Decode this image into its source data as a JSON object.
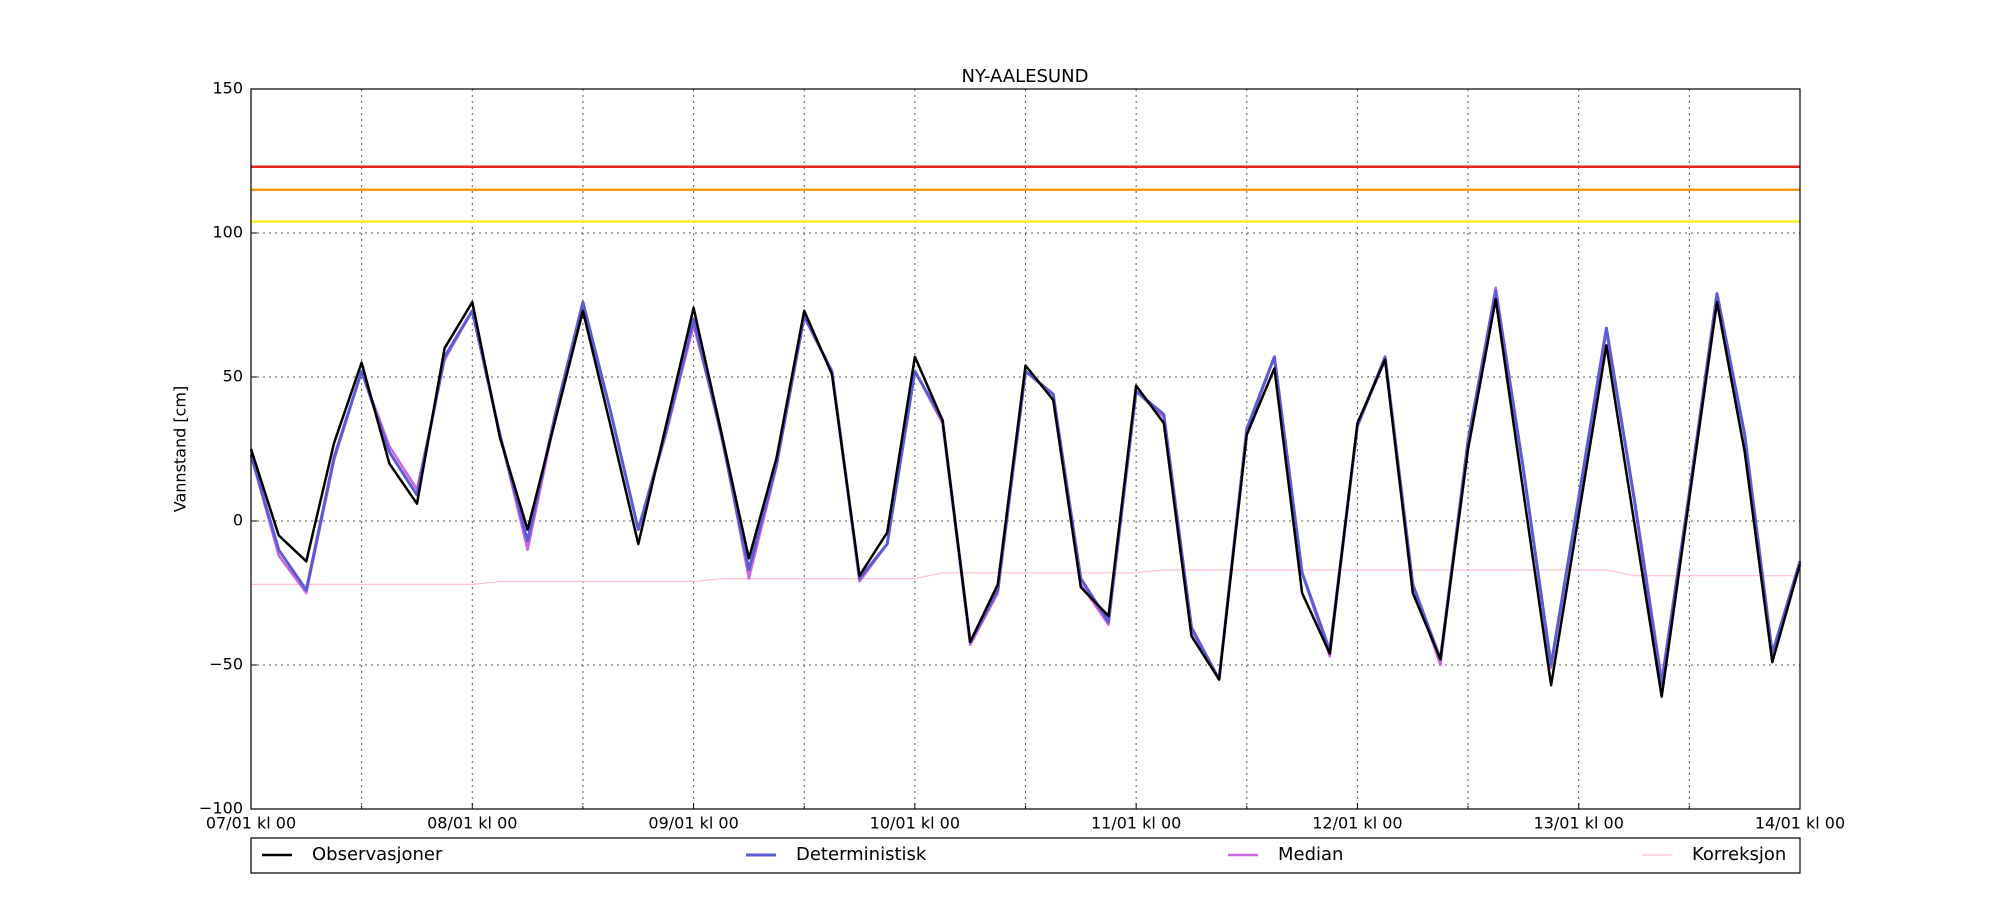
{
  "chart_data": {
    "type": "line",
    "title": "NY-AALESUND",
    "y_label": "Vannstand [cm]",
    "x": [
      0,
      3,
      6,
      9,
      12,
      15,
      18,
      21,
      24,
      27,
      30,
      33,
      36,
      39,
      42,
      45,
      48,
      51,
      54,
      57,
      60,
      63,
      66,
      69,
      72,
      75,
      78,
      81,
      84,
      87,
      90,
      93,
      96,
      99,
      102,
      105,
      108,
      111,
      114,
      117,
      120,
      123,
      126,
      129,
      132,
      135,
      138,
      141,
      144,
      147,
      150,
      153,
      156,
      159,
      162,
      165,
      168
    ],
    "series": [
      {
        "name": "Observasjoner",
        "color": "#000000",
        "width": 2.5,
        "values": [
          25,
          -5,
          -14,
          27,
          55,
          20,
          6,
          60,
          76,
          29,
          -3,
          35,
          73,
          33,
          -8,
          33,
          74,
          31,
          -13,
          22,
          73,
          51,
          -19,
          -4,
          57,
          35,
          -42,
          -22,
          54,
          42,
          -23,
          -33,
          47,
          34,
          -40,
          -55,
          30,
          53,
          -25,
          -46,
          34,
          56,
          -25,
          -48,
          25,
          77,
          10,
          -57,
          2,
          61,
          0,
          -61,
          8,
          76,
          24,
          -49,
          -15
        ]
      },
      {
        "name": "Deterministisk",
        "color": "#5b5bd6",
        "width": 3,
        "values": [
          23,
          -10,
          -24,
          22,
          52,
          24,
          9,
          57,
          73,
          30,
          -7,
          37,
          76,
          38,
          -3,
          31,
          70,
          30,
          -17,
          20,
          71,
          52,
          -20,
          -8,
          52,
          35,
          -42,
          -24,
          52,
          44,
          -20,
          -35,
          45,
          37,
          -37,
          -55,
          32,
          57,
          -18,
          -45,
          33,
          57,
          -22,
          -48,
          28,
          80,
          18,
          -50,
          8,
          67,
          8,
          -57,
          10,
          79,
          30,
          -46,
          -14
        ]
      },
      {
        "name": "Median",
        "color": "#cc66dd",
        "width": 2.5,
        "values": [
          23,
          -12,
          -25,
          21,
          52,
          26,
          11,
          56,
          73,
          30,
          -10,
          36,
          75,
          38,
          -3,
          30,
          68,
          31,
          -20,
          19,
          71,
          52,
          -21,
          -8,
          52,
          34,
          -43,
          -25,
          52,
          44,
          -22,
          -36,
          45,
          36,
          -38,
          -55,
          31,
          57,
          -18,
          -47,
          33,
          56,
          -22,
          -50,
          28,
          81,
          18,
          -51,
          8,
          66,
          9,
          -55,
          10,
          78,
          30,
          -46,
          -14
        ]
      },
      {
        "name": "Korreksjon",
        "color": "#ffc0cb",
        "width": 1.2,
        "values": [
          -22,
          -22,
          -22,
          -22,
          -22,
          -22,
          -22,
          -22,
          -22,
          -21,
          -21,
          -21,
          -21,
          -21,
          -21,
          -21,
          -21,
          -20,
          -20,
          -20,
          -20,
          -20,
          -20,
          -20,
          -20,
          -18,
          -18,
          -18,
          -18,
          -18,
          -18,
          -18,
          -18,
          -17,
          -17,
          -17,
          -17,
          -17,
          -17,
          -17,
          -17,
          -17,
          -17,
          -17,
          -17,
          -17,
          -17,
          -17,
          -17,
          -17,
          -19,
          -19,
          -19,
          -19,
          -19,
          -19,
          -19
        ]
      }
    ],
    "thresholds": [
      {
        "value": 123,
        "color": "#e8231e"
      },
      {
        "value": 115,
        "color": "#f39c12"
      },
      {
        "value": 104,
        "color": "#f5f01d"
      }
    ],
    "xlim": [
      0,
      168
    ],
    "xticks": [
      {
        "value": 0,
        "label": "07/01 kl 00"
      },
      {
        "value": 24,
        "label": "08/01 kl 00"
      },
      {
        "value": 48,
        "label": "09/01 kl 00"
      },
      {
        "value": 72,
        "label": "10/01 kl 00"
      },
      {
        "value": 96,
        "label": "11/01 kl 00"
      },
      {
        "value": 120,
        "label": "12/01 kl 00"
      },
      {
        "value": 144,
        "label": "13/01 kl 00"
      },
      {
        "value": 168,
        "label": "14/01 kl 00"
      }
    ],
    "xminor": [
      12,
      36,
      60,
      84,
      108,
      132,
      156
    ],
    "ylim": [
      -100,
      150
    ],
    "yticks": [
      {
        "value": -100,
        "label": "−100"
      },
      {
        "value": -50,
        "label": "−50"
      },
      0,
      50,
      100,
      150
    ],
    "grid": true
  }
}
